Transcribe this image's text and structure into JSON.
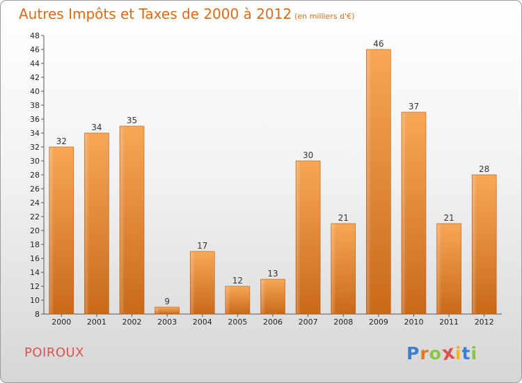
{
  "header": {
    "title": "Autres Impôts et Taxes de 2000 à 2012",
    "unit": "(en milliers d'€)"
  },
  "commune": "POIROUX",
  "logo": {
    "letters": [
      "P",
      "r",
      "o",
      "x",
      "i",
      "t",
      "i"
    ],
    "colors": [
      "#3a7fd0",
      "#e07b1a",
      "#8cc63f",
      "#e0524f",
      "#f3b51b",
      "#3a7fd0",
      "#8cc63f"
    ]
  },
  "chart_data": {
    "type": "bar",
    "title": "Autres Impôts et Taxes de 2000 à 2012",
    "xlabel": "",
    "ylabel": "",
    "categories": [
      "2000",
      "2001",
      "2002",
      "2003",
      "2004",
      "2005",
      "2006",
      "2007",
      "2008",
      "2009",
      "2010",
      "2011",
      "2012"
    ],
    "values": [
      32,
      34,
      35,
      9,
      17,
      12,
      13,
      30,
      21,
      46,
      37,
      21,
      28
    ],
    "ylim": [
      8,
      48
    ],
    "yticks": [
      8,
      10,
      12,
      14,
      16,
      18,
      20,
      22,
      24,
      26,
      28,
      30,
      32,
      34,
      36,
      38,
      40,
      42,
      44,
      46,
      48
    ],
    "grid": false,
    "bar_color": "#f08a2c"
  }
}
